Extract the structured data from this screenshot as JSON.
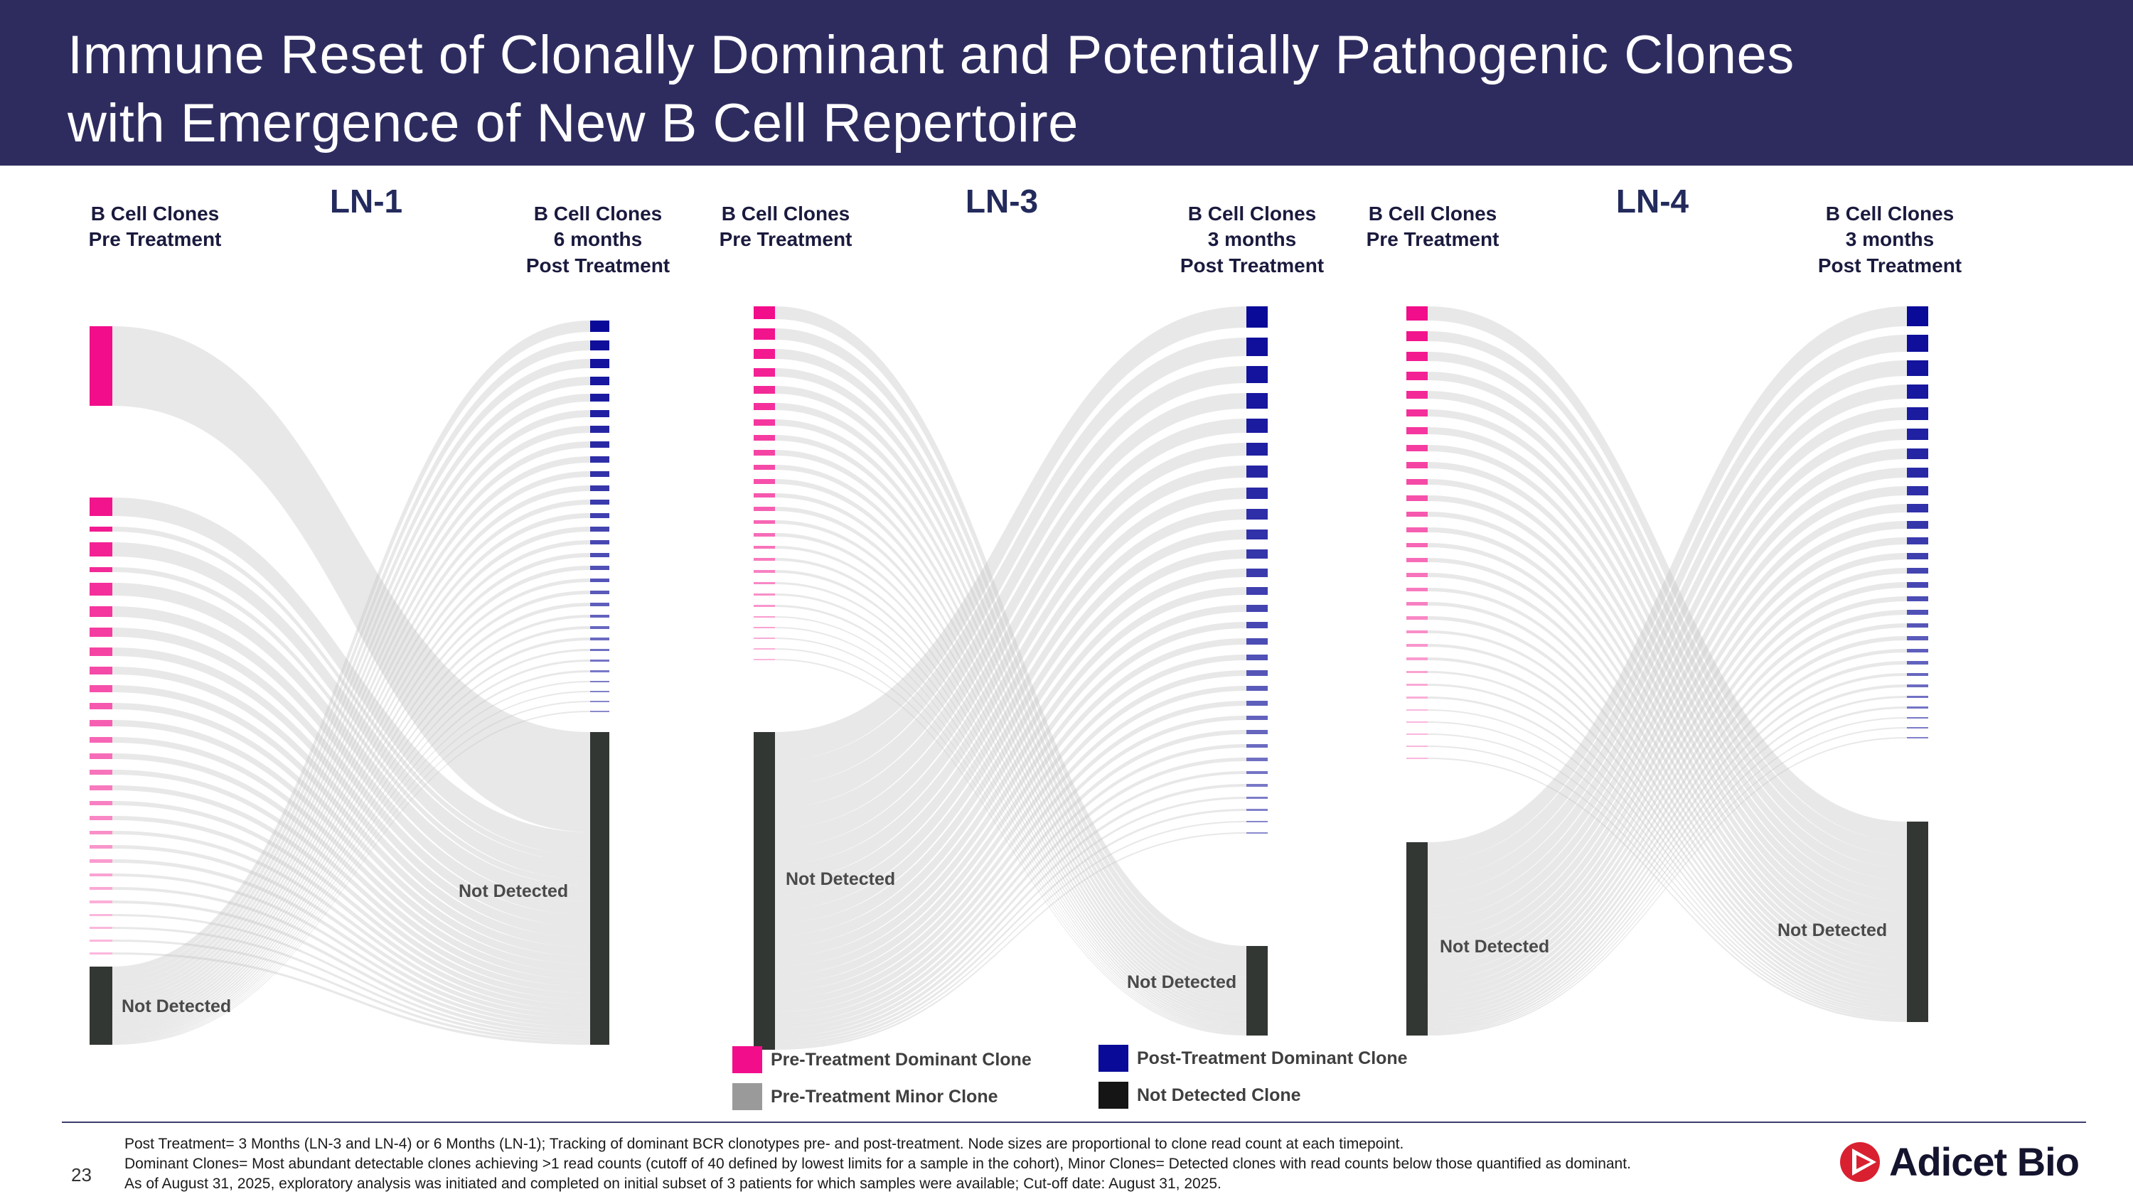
{
  "header": {
    "title": "Immune Reset of Clonally Dominant and Potentially Pathogenic Clones\nwith Emergence of New B Cell Repertoire"
  },
  "colors": {
    "header_bg": "#2e2c5f",
    "pre_dominant": "#f20d8a",
    "post_dominant": "#0a0a99",
    "not_detected": "#333733",
    "flow": "#c6c6c6",
    "accent_red": "#d92030"
  },
  "legend": {
    "items": [
      {
        "label": "Pre-Treatment Dominant Clone",
        "color": "#f20d8a"
      },
      {
        "label": "Pre-Treatment Minor Clone",
        "color": "#9a9a9a"
      },
      {
        "label": "Post-Treatment Dominant Clone",
        "color": "#0a0a99"
      },
      {
        "label": "Not Detected Clone",
        "color": "#151515"
      }
    ]
  },
  "chart_data": [
    {
      "type": "sankey",
      "title": "LN-1",
      "left_axis_label": "B Cell Clones\nPre Treatment",
      "right_axis_label": "B Cell Clones\n6 months\nPost Treatment",
      "left_not_detected_label": "Not Detected",
      "right_not_detected_label": "Not Detected",
      "note": "Node sizes proportional to clone read count; pre-treatment clones flow to post-treatment Not Detected, post-treatment clones emerge from pre-treatment Not Detected",
      "pre_treatment_clone_sizes": [
        112,
        26,
        7,
        20,
        7,
        18,
        15,
        13,
        12,
        11,
        10,
        9,
        9,
        8,
        8,
        7,
        7,
        6,
        6,
        5,
        5,
        5,
        4,
        4,
        4,
        3,
        3,
        3,
        3
      ],
      "pre_not_detected_size": 110,
      "post_treatment_clone_sizes": [
        16,
        14,
        13,
        12,
        11,
        10,
        10,
        9,
        9,
        8,
        8,
        7,
        7,
        7,
        6,
        6,
        6,
        5,
        5,
        5,
        4,
        4,
        4,
        3,
        3,
        3,
        2,
        2,
        2,
        2
      ],
      "post_not_detected_size": 440
    },
    {
      "type": "sankey",
      "title": "LN-3",
      "left_axis_label": "B Cell Clones\nPre Treatment",
      "right_axis_label": "B Cell Clones\n3 months\nPost Treatment",
      "left_not_detected_label": "Not Detected",
      "right_not_detected_label": "Not Detected",
      "note": "Node sizes proportional to clone read count; pre-treatment clones flow to post-treatment Not Detected, post-treatment clones emerge from pre-treatment Not Detected",
      "pre_treatment_clone_sizes": [
        18,
        16,
        14,
        12,
        11,
        10,
        9,
        8,
        8,
        7,
        7,
        6,
        6,
        5,
        5,
        4,
        4,
        4,
        3,
        3,
        3,
        2,
        2,
        2,
        2,
        2
      ],
      "pre_not_detected_size": 447,
      "post_treatment_clone_sizes": [
        30,
        26,
        24,
        22,
        20,
        18,
        17,
        16,
        15,
        14,
        13,
        12,
        11,
        10,
        9,
        9,
        8,
        8,
        7,
        7,
        6,
        6,
        5,
        5,
        4,
        4,
        3,
        3,
        2,
        2
      ],
      "post_not_detected_size": 126
    },
    {
      "type": "sankey",
      "title": "LN-4",
      "left_axis_label": "B Cell Clones\nPre Treatment",
      "right_axis_label": "B Cell Clones\n3 months\nPost Treatment",
      "left_not_detected_label": "Not Detected",
      "right_not_detected_label": "Not Detected",
      "note": "Node sizes proportional to clone read count; pre-treatment clones flow to post-treatment Not Detected, post-treatment clones emerge from pre-treatment Not Detected",
      "pre_treatment_clone_sizes": [
        20,
        14,
        13,
        12,
        11,
        10,
        10,
        9,
        9,
        8,
        8,
        7,
        7,
        6,
        6,
        6,
        5,
        5,
        5,
        4,
        4,
        4,
        3,
        3,
        3,
        2,
        2,
        2,
        2,
        2
      ],
      "pre_not_detected_size": 272,
      "post_treatment_clone_sizes": [
        28,
        24,
        22,
        20,
        18,
        16,
        15,
        14,
        13,
        12,
        11,
        10,
        9,
        8,
        8,
        7,
        7,
        6,
        6,
        5,
        5,
        4,
        4,
        3,
        3,
        2,
        2,
        2
      ],
      "post_not_detected_size": 282
    }
  ],
  "footer": {
    "page_number": "23",
    "notes": [
      "Post Treatment= 3 Months (LN-3 and LN-4) or 6 Months (LN-1); Tracking of dominant BCR clonotypes pre- and post-treatment. Node sizes are proportional to clone read count at each timepoint.",
      "Dominant Clones= Most abundant detectable clones achieving >1 read counts (cutoff of 40 defined by lowest limits for a sample in the cohort), Minor Clones= Detected clones with read counts below those quantified as dominant.",
      "As of August 31, 2025, exploratory analysis was initiated and completed on initial subset of 3 patients for which samples were available; Cut-off date: August 31, 2025."
    ],
    "logo_text": "Adicet Bio"
  }
}
